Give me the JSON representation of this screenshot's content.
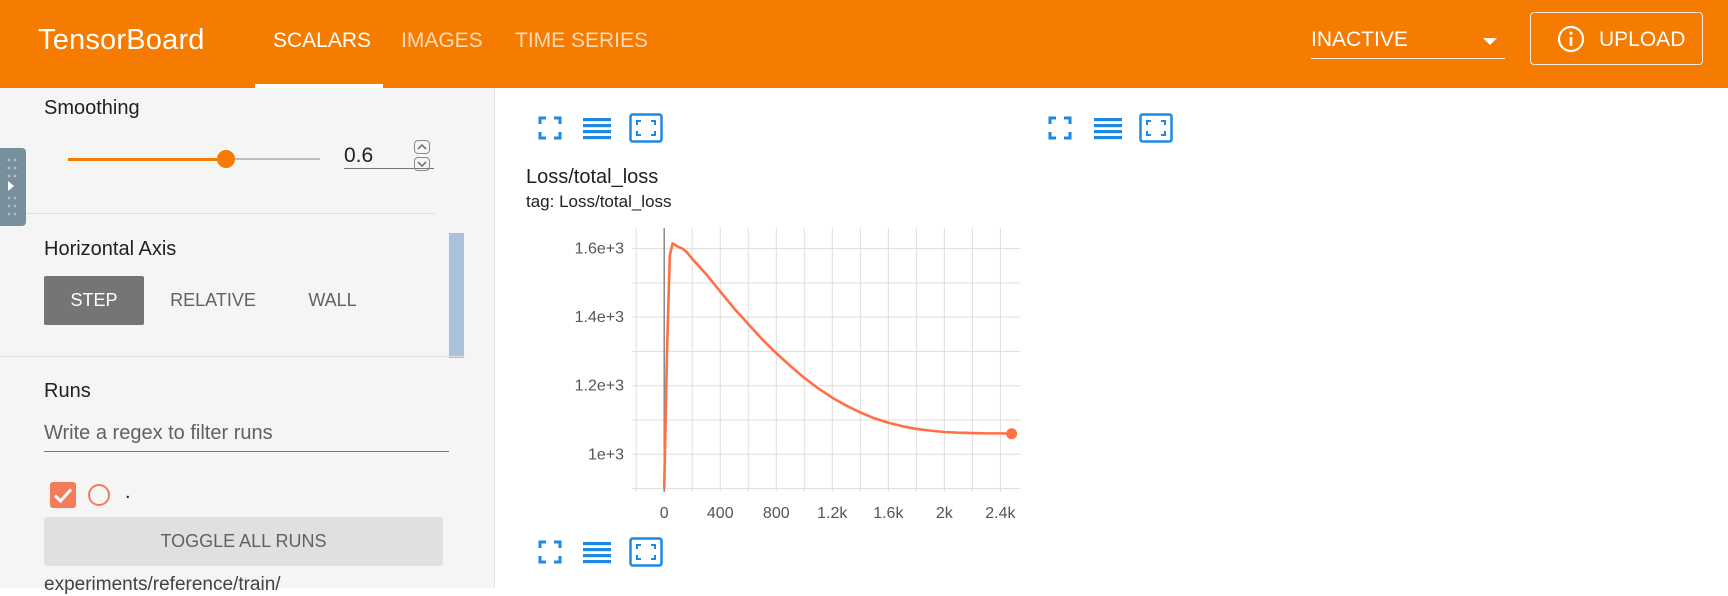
{
  "header": {
    "brand": "TensorBoard",
    "tabs": [
      {
        "label": "SCALARS",
        "active": true
      },
      {
        "label": "IMAGES",
        "active": false
      },
      {
        "label": "TIME SERIES",
        "active": false
      }
    ],
    "status_select": {
      "value": "INACTIVE"
    },
    "upload_button": {
      "label": "UPLOAD",
      "icon": "info-icon"
    },
    "color": "#f57c00"
  },
  "sidebar": {
    "smoothing": {
      "title": "Smoothing",
      "value": "0.6",
      "fraction": 0.6
    },
    "horizontal_axis": {
      "title": "Horizontal Axis",
      "options": [
        "STEP",
        "RELATIVE",
        "WALL"
      ],
      "selected": "STEP"
    },
    "runs": {
      "title": "Runs",
      "filter_placeholder": "Write a regex to filter runs",
      "items": [
        {
          "name": ".",
          "checked": true,
          "color": "#f57c5b"
        }
      ],
      "toggle_label": "TOGGLE ALL RUNS",
      "path": "experiments/reference/train/"
    }
  },
  "main": {
    "card": {
      "title": "Loss/total_loss",
      "tag": "tag: Loss/total_loss"
    },
    "toolbar_icons": [
      "fullscreen-icon",
      "lines-icon",
      "fit-domain-icon"
    ]
  },
  "chart_data": {
    "type": "line",
    "title": "Loss/total_loss",
    "xlabel": "",
    "ylabel": "",
    "xlim": [
      -230,
      2540
    ],
    "ylim": [
      890,
      1660
    ],
    "x_ticks": [
      0,
      400,
      800,
      1200,
      1600,
      2000,
      2400
    ],
    "x_tick_labels": [
      "0",
      "400",
      "800",
      "1.2k",
      "1.6k",
      "2k",
      "2.4k"
    ],
    "y_ticks": [
      1000,
      1200,
      1400,
      1600
    ],
    "y_tick_labels": [
      "1e+3",
      "1.2e+3",
      "1.4e+3",
      "1.6e+3"
    ],
    "grid": true,
    "series": [
      {
        "color": "#ff7043",
        "x": [
          0,
          20,
          40,
          60,
          80,
          100,
          130,
          160,
          200,
          300,
          400,
          500,
          600,
          700,
          800,
          900,
          1000,
          1100,
          1200,
          1300,
          1400,
          1500,
          1600,
          1700,
          1800,
          1900,
          2000,
          2100,
          2200,
          2300,
          2400,
          2480
        ],
        "y": [
          900,
          1300,
          1580,
          1615,
          1610,
          1605,
          1600,
          1590,
          1570,
          1525,
          1475,
          1425,
          1380,
          1335,
          1295,
          1258,
          1223,
          1192,
          1165,
          1142,
          1122,
          1105,
          1092,
          1082,
          1074,
          1069,
          1065,
          1063,
          1062,
          1061,
          1061,
          1060
        ]
      }
    ]
  }
}
